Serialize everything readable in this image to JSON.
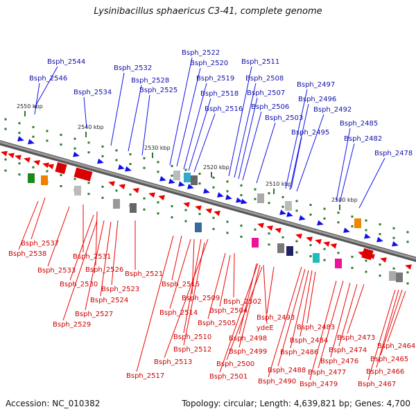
{
  "title": "Lysinibacillus sphaericus C3-41, complete genome",
  "footer": {
    "accession_label": "Accession:",
    "accession": "NC_010382",
    "topology_label": "Topology:",
    "topology": "circular",
    "length_label": "Length:",
    "length": "4,639,821 bp",
    "genes_label": "Genes:",
    "genes": "4,700"
  },
  "colors": {
    "forward": "#1010ee",
    "reverse": "#ee0000",
    "backbone": "#7a7a7a",
    "tick": "#2a7a2a"
  },
  "ticks": [
    "2550 kbp",
    "2540 kbp",
    "2530 kbp",
    "2520 kbp",
    "2510 kbp",
    "2500 kbp"
  ],
  "upper_labels": [
    "Bsph_2544",
    "Bsph_2546",
    "Bsph_2534",
    "Bsph_2532",
    "Bsph_2528",
    "Bsph_2525",
    "Bsph_2522",
    "Bsph_2520",
    "Bsph_2519",
    "Bsph_2518",
    "Bsph_2516",
    "Bsph_2511",
    "Bsph_2508",
    "Bsph_2507",
    "Bsph_2506",
    "Bsph_2503",
    "Bsph_2497",
    "Bsph_2496",
    "Bsph_2492",
    "Bsph_2495",
    "Bsph_2485",
    "Bsph_2482",
    "Bsph_2478"
  ],
  "lower_labels": [
    "Bsph_2537",
    "Bsph_2538",
    "Bsph_2531",
    "Bsph_2533",
    "Bsph_2526",
    "Bsph_2530",
    "Bsph_2521",
    "Bsph_2523",
    "Bsph_2524",
    "Bsph_2527",
    "Bsph_2529",
    "Bsph_2515",
    "Bsph_2509",
    "Bsph_2514",
    "Bsph_2502",
    "Bsph_2504",
    "Bsph_2505",
    "Bsph_2510",
    "Bsph_2512",
    "Bsph_2513",
    "Bsph_2517",
    "Bsph_2493",
    "ydeE",
    "Bsph_2498",
    "Bsph_2499",
    "Bsph_2500",
    "Bsph_2501",
    "Bsph_2483",
    "Bsph_2484",
    "Bsph_2486",
    "Bsph_2488",
    "Bsph_2490",
    "Bsph_2473",
    "Bsph_2474",
    "Bsph_2476",
    "Bsph_2477",
    "Bsph_2479",
    "Bsph_2464",
    "Bsph_2465",
    "Bsph_2466",
    "Bsph_2467"
  ]
}
